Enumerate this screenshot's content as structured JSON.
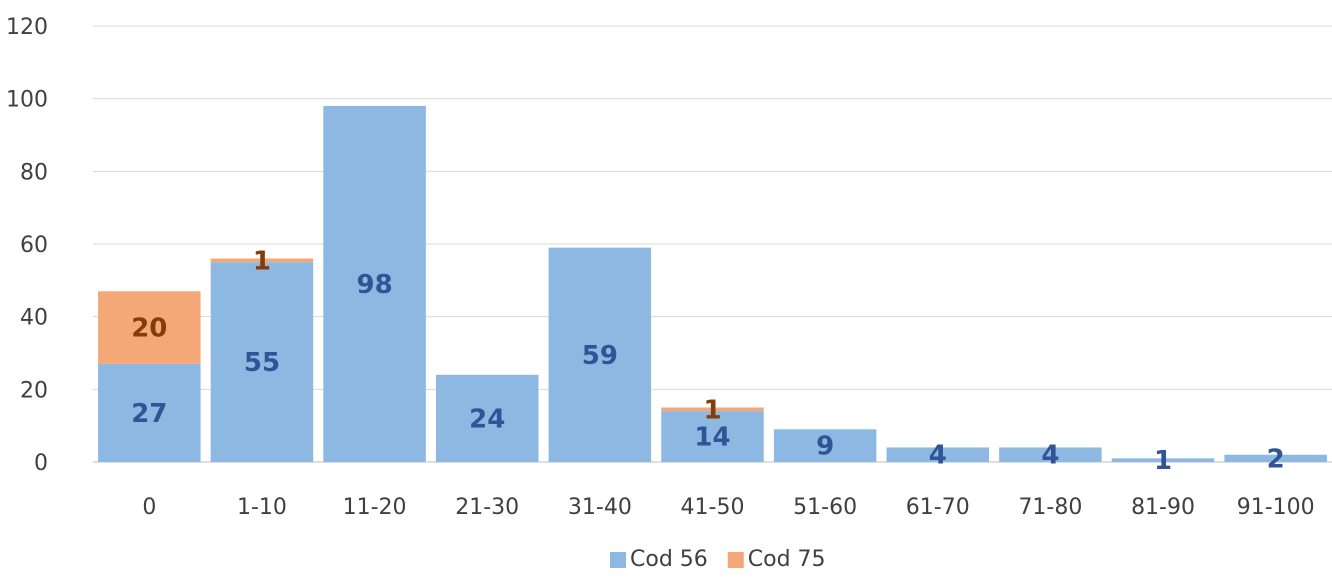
{
  "chart_data": {
    "type": "bar",
    "stacked": true,
    "categories": [
      "0",
      "1-10",
      "11-20",
      "21-30",
      "31-40",
      "41-50",
      "51-60",
      "61-70",
      "71-80",
      "81-90",
      "91-100"
    ],
    "series": [
      {
        "name": "Cod 56",
        "values": [
          27,
          55,
          98,
          24,
          59,
          14,
          9,
          4,
          4,
          1,
          2
        ],
        "color": "#8db8e2",
        "label_color": "#2f5597"
      },
      {
        "name": "Cod 75",
        "values": [
          20,
          1,
          0,
          0,
          0,
          1,
          0,
          0,
          0,
          0,
          0
        ],
        "color": "#f4a877",
        "label_color": "#843c0c"
      }
    ],
    "yticks": [
      "0",
      "20",
      "40",
      "60",
      "80",
      "100",
      "120"
    ],
    "ylim": [
      0,
      120
    ],
    "grid": true,
    "legend_position": "bottom",
    "title": "",
    "xlabel": "",
    "ylabel": ""
  }
}
